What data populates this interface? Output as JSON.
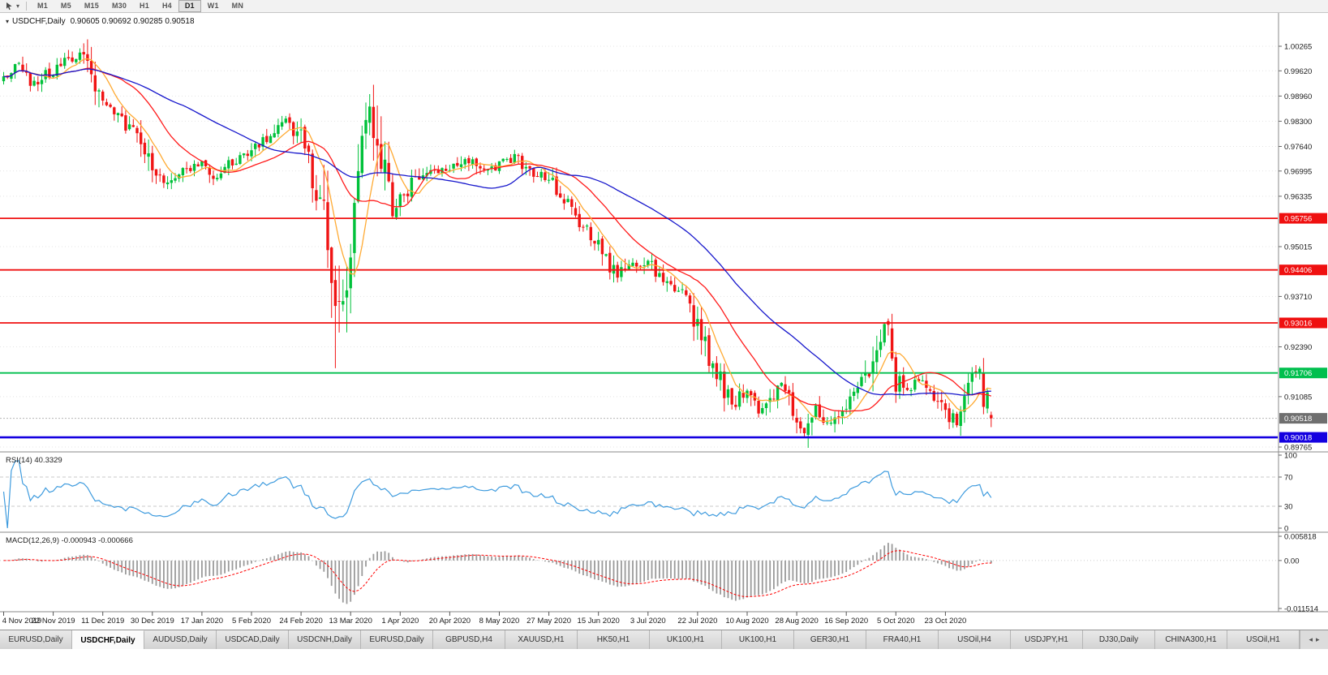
{
  "toolbar": {
    "timeframes": [
      "M1",
      "M5",
      "M15",
      "M30",
      "H1",
      "H4",
      "D1",
      "W1",
      "MN"
    ],
    "active_timeframe": "D1"
  },
  "chart_header": {
    "symbol_period": "USDCHF,Daily",
    "open": "0.90605",
    "high": "0.90692",
    "low": "0.90285",
    "close": "0.90518",
    "ohlc_text": "0.90605 0.90692 0.90285 0.90518"
  },
  "indicators": {
    "rsi": {
      "label": "RSI(14) 40.3329",
      "period": 14,
      "last_value": 40.3329,
      "axis_labels": [
        "100",
        "70",
        "30",
        "0"
      ],
      "guide_levels": [
        70,
        30
      ],
      "line_color": "#3e9bde"
    },
    "macd": {
      "label": "MACD(12,26,9) -0.000943 -0.000666",
      "fast": 12,
      "slow": 26,
      "signal": 9,
      "main_value": -0.000943,
      "signal_value": -0.000666,
      "axis_labels": [
        "0.005818",
        "0.00",
        "-0.011514"
      ],
      "axis_max": 0.005818,
      "axis_min": -0.011514,
      "histogram_color": "#9a9a9a",
      "signal_color": "#ff0000"
    }
  },
  "chart_data": {
    "type": "candlestick",
    "symbol": "USDCHF",
    "timeframe": "Daily",
    "bar_count": 260,
    "bars_per_date_label": 13,
    "x_axis_dates": [
      "4 Nov 2019",
      "22 Nov 2019",
      "11 Dec 2019",
      "30 Dec 2019",
      "17 Jan 2020",
      "5 Feb 2020",
      "24 Feb 2020",
      "13 Mar 2020",
      "1 Apr 2020",
      "20 Apr 2020",
      "8 May 2020",
      "27 May 2020",
      "15 Jun 2020",
      "3 Jul 2020",
      "22 Jul 2020",
      "10 Aug 2020",
      "28 Aug 2020",
      "16 Sep 2020",
      "5 Oct 2020",
      "23 Oct 2020"
    ],
    "price_axis_labels": [
      "1.00265",
      "0.99620",
      "0.98960",
      "0.98300",
      "0.97640",
      "0.96995",
      "0.96335",
      "0.95015",
      "0.93710",
      "0.92390",
      "0.91085",
      "0.89765"
    ],
    "price_axis_max_label": 1.00265,
    "price_axis_min_label": 0.89765,
    "close_waypoints": [
      [
        0,
        0.9935
      ],
      [
        4,
        0.9985
      ],
      [
        8,
        0.9925
      ],
      [
        13,
        0.9965
      ],
      [
        18,
        0.9995
      ],
      [
        21,
        1.0008
      ],
      [
        23,
        0.9955
      ],
      [
        26,
        0.988
      ],
      [
        30,
        0.9845
      ],
      [
        35,
        0.979
      ],
      [
        39,
        0.97
      ],
      [
        42,
        0.9665
      ],
      [
        46,
        0.969
      ],
      [
        52,
        0.972
      ],
      [
        56,
        0.9685
      ],
      [
        60,
        0.9725
      ],
      [
        65,
        0.9755
      ],
      [
        70,
        0.9795
      ],
      [
        74,
        0.9845
      ],
      [
        78,
        0.978
      ],
      [
        81,
        0.969
      ],
      [
        84,
        0.9595
      ],
      [
        86,
        0.942
      ],
      [
        87,
        0.93
      ],
      [
        88,
        0.9375
      ],
      [
        90,
        0.9445
      ],
      [
        91,
        0.9505
      ],
      [
        93,
        0.9635
      ],
      [
        95,
        0.9825
      ],
      [
        96,
        0.9895
      ],
      [
        98,
        0.979
      ],
      [
        100,
        0.9685
      ],
      [
        102,
        0.959
      ],
      [
        104,
        0.9625
      ],
      [
        108,
        0.9675
      ],
      [
        112,
        0.9705
      ],
      [
        117,
        0.97
      ],
      [
        121,
        0.974
      ],
      [
        126,
        0.9695
      ],
      [
        130,
        0.9715
      ],
      [
        134,
        0.9735
      ],
      [
        138,
        0.9695
      ],
      [
        143,
        0.968
      ],
      [
        147,
        0.963
      ],
      [
        151,
        0.957
      ],
      [
        154,
        0.953
      ],
      [
        158,
        0.947
      ],
      [
        161,
        0.9425
      ],
      [
        164,
        0.9465
      ],
      [
        167,
        0.944
      ],
      [
        169,
        0.9465
      ],
      [
        172,
        0.943
      ],
      [
        175,
        0.94
      ],
      [
        178,
        0.938
      ],
      [
        180,
        0.9355
      ],
      [
        182,
        0.929
      ],
      [
        185,
        0.9215
      ],
      [
        188,
        0.915
      ],
      [
        191,
        0.9085
      ],
      [
        195,
        0.913
      ],
      [
        198,
        0.9065
      ],
      [
        201,
        0.9105
      ],
      [
        204,
        0.915
      ],
      [
        208,
        0.906
      ],
      [
        210,
        0.902
      ],
      [
        213,
        0.9085
      ],
      [
        216,
        0.904
      ],
      [
        219,
        0.9065
      ],
      [
        221,
        0.9095
      ],
      [
        224,
        0.9135
      ],
      [
        227,
        0.919
      ],
      [
        229,
        0.9258
      ],
      [
        231,
        0.9296
      ],
      [
        233,
        0.9235
      ],
      [
        234,
        0.916
      ],
      [
        237,
        0.913
      ],
      [
        240,
        0.9148
      ],
      [
        243,
        0.9125
      ],
      [
        246,
        0.9085
      ],
      [
        248,
        0.9058
      ],
      [
        250,
        0.9045
      ],
      [
        252,
        0.9088
      ],
      [
        254,
        0.9142
      ],
      [
        256,
        0.9178
      ],
      [
        257,
        0.913
      ],
      [
        258,
        0.9082
      ],
      [
        259,
        0.90518
      ]
    ],
    "pinned_extremes": [
      [
        87,
        "low",
        0.9183
      ],
      [
        96,
        "high",
        0.9901
      ],
      [
        210,
        "low",
        0.9004
      ],
      [
        231,
        "high",
        0.9303
      ]
    ],
    "last_bar": {
      "open": 0.90605,
      "high": 0.90692,
      "low": 0.90285,
      "close": 0.90518
    },
    "horizontal_levels": [
      {
        "price": 0.95756,
        "label": "0.95756",
        "color": "#ef1010",
        "width": 1.8
      },
      {
        "price": 0.94406,
        "label": "0.94406",
        "color": "#ef1010",
        "width": 1.8
      },
      {
        "price": 0.93016,
        "label": "0.93016",
        "color": "#ef1010",
        "width": 1.8
      },
      {
        "price": 0.91706,
        "label": "0.91706",
        "color": "#00bf4e",
        "width": 1.8
      },
      {
        "price": 0.90018,
        "label": "0.90018",
        "color": "#1400e0",
        "width": 2.6
      }
    ],
    "current_price": {
      "value": 0.90518,
      "label": "0.90518",
      "color": "#6f6f6f"
    },
    "moving_averages": [
      {
        "period": 8,
        "color": "#ffaa33"
      },
      {
        "period": 21,
        "color": "#ff1a1a"
      },
      {
        "period": 48,
        "color": "#1717cc"
      }
    ],
    "candle_up_color": "#00c13a",
    "candle_down_color": "#f01414"
  },
  "tabs": {
    "items": [
      "EURUSD,Daily",
      "USDCHF,Daily",
      "AUDUSD,Daily",
      "USDCAD,Daily",
      "USDCNH,Daily",
      "EURUSD,Daily",
      "GBPUSD,H4",
      "XAUUSD,H1",
      "HK50,H1",
      "UK100,H1",
      "UK100,H1",
      "GER30,H1",
      "FRA40,H1",
      "USOil,H4",
      "USDJPY,H1",
      "DJ30,Daily",
      "CHINA300,H1",
      "USOil,H1"
    ],
    "active_index": 1,
    "scroll_left_glyph": "◂",
    "scroll_right_glyph": "▸"
  }
}
